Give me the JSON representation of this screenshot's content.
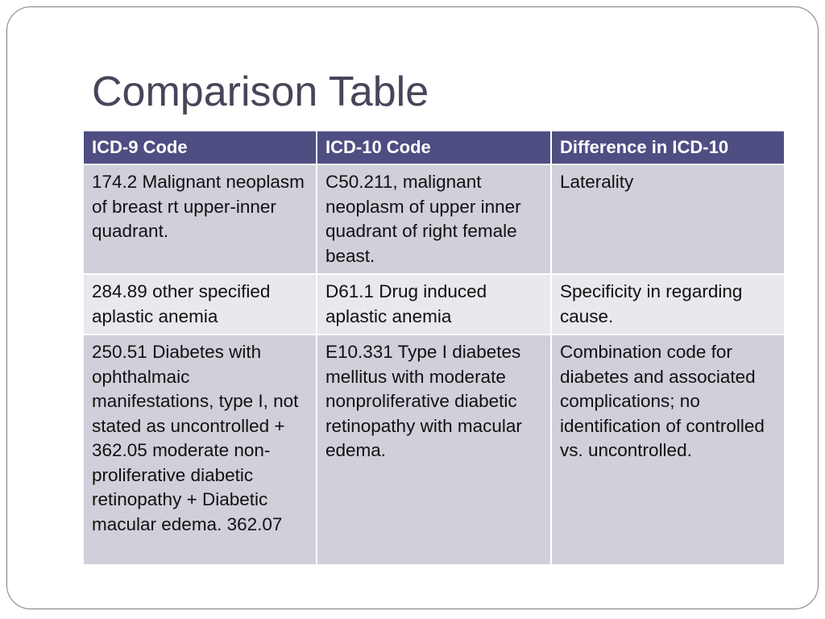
{
  "slide": {
    "title": "Comparison Table"
  },
  "table": {
    "headers": [
      "ICD-9 Code",
      "ICD-10 Code",
      "Difference in ICD-10"
    ],
    "rows": [
      [
        "174.2 Malignant neoplasm of breast rt upper-inner quadrant.",
        "C50.211, malignant neoplasm of upper inner quadrant of right female beast.",
        "Laterality"
      ],
      [
        "284.89 other specified aplastic anemia",
        "D61.1 Drug induced aplastic anemia",
        "Specificity in regarding cause."
      ],
      [
        "250.51 Diabetes with ophthalmaic manifestations, type I, not stated as uncontrolled + 362.05 moderate non-proliferative diabetic retinopathy + Diabetic macular edema. 362.07",
        "E10.331 Type I diabetes mellitus with moderate nonproliferative diabetic retinopathy with macular edema.",
        "Combination code for diabetes and associated complications; no identification of controlled vs. uncontrolled."
      ]
    ]
  },
  "colors": {
    "title_text": "#454659",
    "header_bg": "#4f4e82",
    "header_text": "#ffffff",
    "row_dark_bg": "#cfd0d9",
    "row_light_bg": "#e8e8ed"
  }
}
